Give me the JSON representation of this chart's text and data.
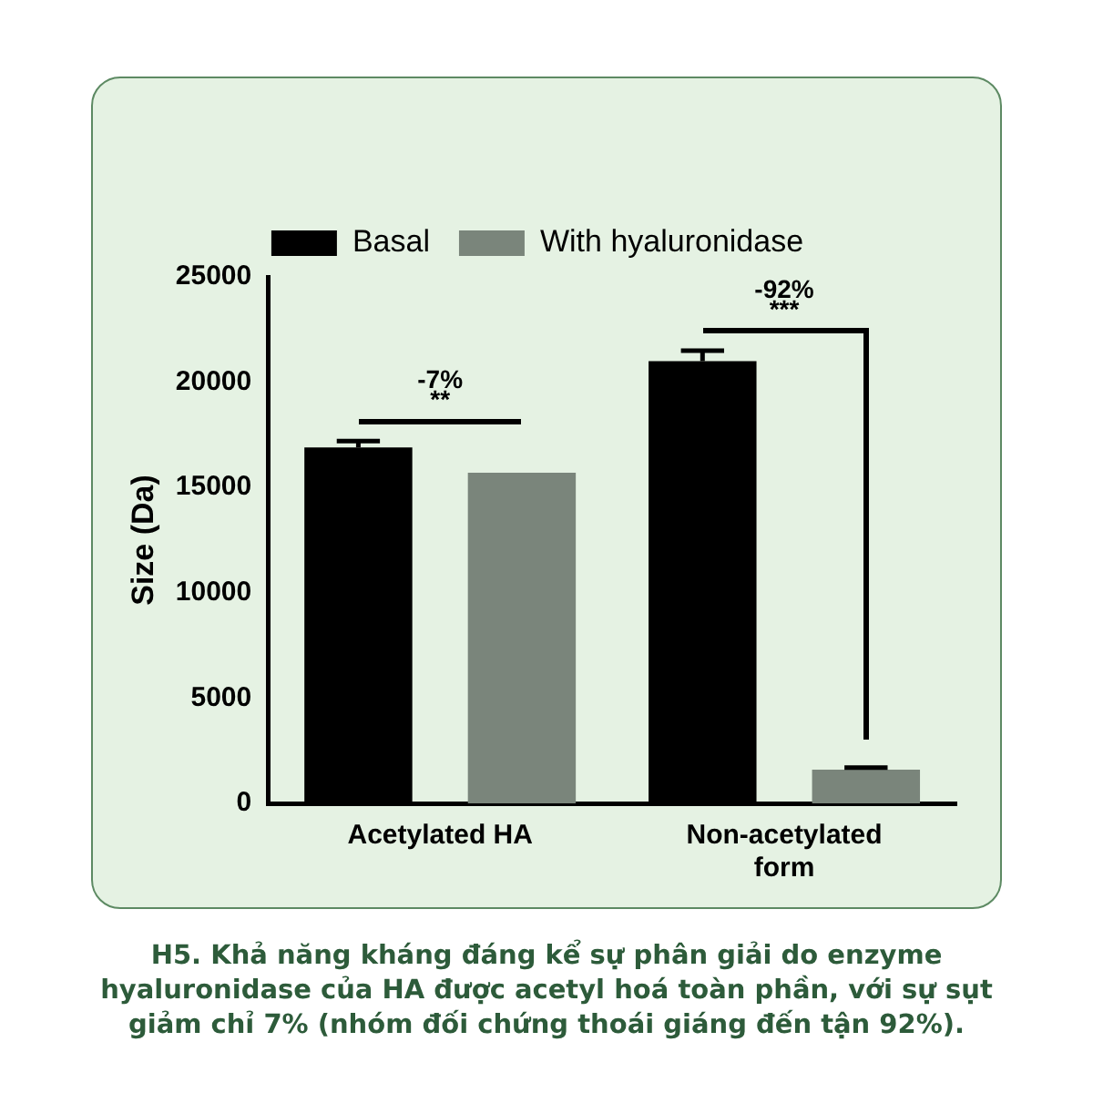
{
  "chart_data": {
    "type": "bar",
    "ylabel": "Size (Da)",
    "categories": [
      "Acetylated HA",
      "Non-acetylated form"
    ],
    "series": [
      {
        "name": "Basal",
        "color": "#000000",
        "values": [
          16900,
          21000
        ],
        "errors": [
          [
            16900,
            17200
          ],
          [
            21000,
            21500
          ]
        ]
      },
      {
        "name": "With hyaluronidase",
        "color": "#7a857b",
        "values": [
          15700,
          1600
        ],
        "errors": [
          null,
          [
            1600,
            1700
          ]
        ]
      }
    ],
    "ylim": [
      0,
      25000
    ],
    "yticks": [
      0,
      5000,
      10000,
      15000,
      20000,
      25000
    ],
    "grid": false,
    "legend": "top",
    "annotations": [
      "-7%",
      "**",
      "-92%",
      "***",
      "H5. Khả năng kháng đáng kể sự phân giải do enzyme hyaluronidase của HA được acetyl hoá toàn phần, với sự sụt giảm chỉ 7% (nhóm đối chứng thoái giáng đến tận 92%)."
    ]
  }
}
